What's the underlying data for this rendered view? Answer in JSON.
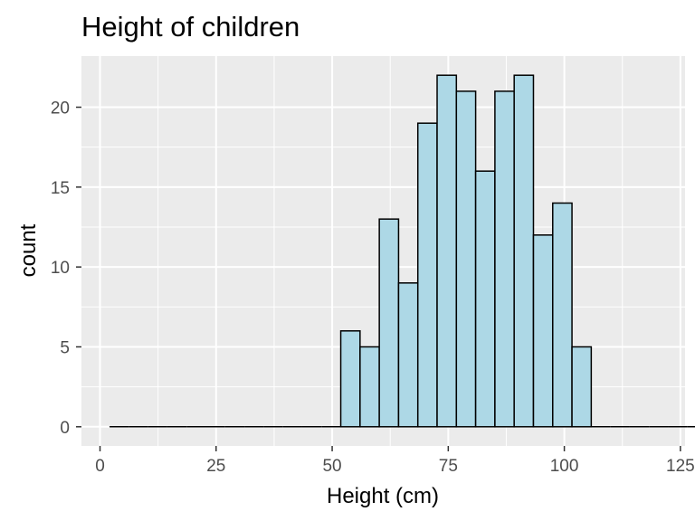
{
  "chart_data": {
    "type": "bar",
    "title": "Height of children",
    "xlabel": "Height (cm)",
    "ylabel": "count",
    "xlim": [
      -4,
      126
    ],
    "ylim": [
      -1.2,
      23.2
    ],
    "x_ticks": [
      0,
      25,
      50,
      75,
      100,
      125
    ],
    "y_ticks": [
      0,
      5,
      10,
      15,
      20
    ],
    "grid": true,
    "bin_width": 4.15,
    "bin_start": 2.05,
    "bin_counts": [
      0,
      0,
      0,
      0,
      0,
      0,
      0,
      0,
      0,
      0,
      0,
      0,
      6,
      5,
      13,
      9,
      19,
      22,
      21,
      16,
      21,
      22,
      12,
      14,
      5,
      0,
      0,
      0,
      0,
      0,
      0,
      0,
      0,
      0
    ],
    "colors": {
      "fill": "#add8e6",
      "outline": "#000000",
      "panel": "#ebebeb",
      "grid": "#ffffff"
    }
  }
}
